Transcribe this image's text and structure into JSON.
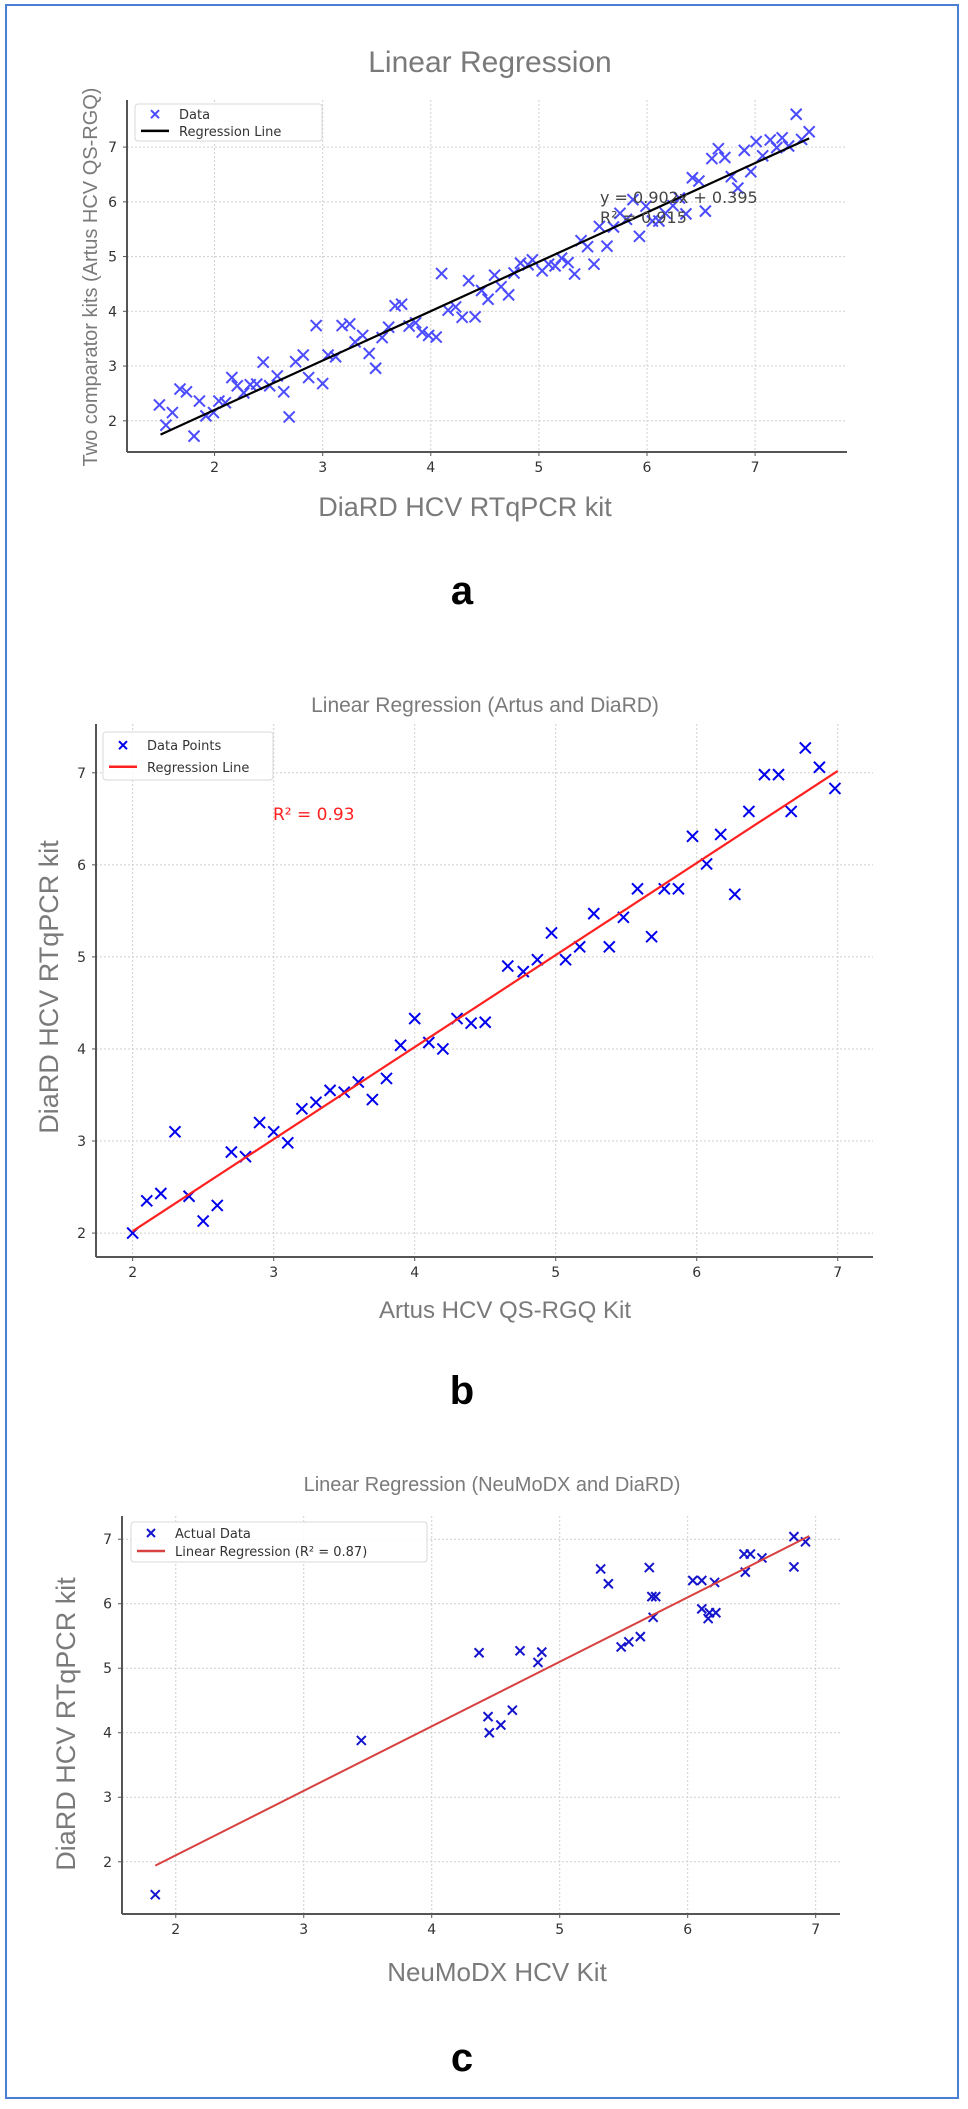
{
  "frame_color": "#4a7fd4",
  "chart_data": [
    {
      "type": "scatter",
      "panel_label": "a",
      "title": "Linear Regression",
      "xlabel": "DiaRD HCV RTqPCR kit",
      "ylabel": "Two comparator kits (Artus HCV QS-RGQ)",
      "xlim": [
        1.19,
        7.85
      ],
      "ylim": [
        1.43,
        7.86
      ],
      "xticks": [
        "2",
        "3",
        "4",
        "5",
        "6",
        "7"
      ],
      "yticks": [
        "2",
        "3",
        "4",
        "5",
        "6",
        "7"
      ],
      "grid": true,
      "legend": {
        "position": "top-left",
        "entries": [
          "Data",
          "Regression Line"
        ]
      },
      "annotation": {
        "equation": "y = 0.902x + 0.395",
        "r2": "R² = 0.915"
      },
      "marker_color": "#4b4bff",
      "line_color": "#000000",
      "regression": {
        "slope": 0.902,
        "intercept": 0.395,
        "x_range": [
          1.5,
          7.5
        ]
      },
      "series": [
        {
          "name": "Data",
          "x": [
            1.49,
            1.55,
            1.61,
            1.68,
            1.74,
            1.81,
            1.86,
            1.92,
            1.99,
            2.04,
            2.1,
            2.16,
            2.21,
            2.27,
            2.33,
            2.39,
            2.45,
            2.51,
            2.58,
            2.64,
            2.69,
            2.75,
            2.82,
            2.87,
            2.94,
            3.0,
            3.05,
            3.12,
            3.18,
            3.25,
            3.3,
            3.37,
            3.43,
            3.49,
            3.55,
            3.61,
            3.67,
            3.73,
            3.8,
            3.86,
            3.92,
            3.98,
            4.05,
            4.1,
            4.16,
            4.23,
            4.29,
            4.35,
            4.41,
            4.47,
            4.53,
            4.59,
            4.65,
            4.72,
            4.77,
            4.83,
            4.9,
            4.94,
            5.03,
            5.09,
            5.15,
            5.21,
            5.27,
            5.33,
            5.39,
            5.45,
            5.51,
            5.56,
            5.63,
            5.69,
            5.75,
            5.81,
            5.87,
            5.93,
            5.99,
            6.05,
            6.11,
            6.17,
            6.24,
            6.3,
            6.36,
            6.42,
            6.48,
            6.54,
            6.6,
            6.66,
            6.72,
            6.78,
            6.84,
            6.9,
            6.96,
            7.01,
            7.07,
            7.14,
            7.2,
            7.25,
            7.31,
            7.38,
            7.43,
            7.5
          ],
          "y": [
            2.29,
            1.92,
            2.15,
            2.58,
            2.53,
            1.72,
            2.36,
            2.09,
            2.15,
            2.36,
            2.33,
            2.79,
            2.64,
            2.51,
            2.66,
            2.67,
            3.07,
            2.64,
            2.82,
            2.53,
            2.07,
            3.08,
            3.2,
            2.79,
            3.74,
            2.68,
            3.2,
            3.17,
            3.74,
            3.77,
            3.44,
            3.56,
            3.23,
            2.96,
            3.52,
            3.71,
            4.1,
            4.13,
            3.73,
            3.79,
            3.62,
            3.56,
            3.53,
            4.69,
            4.02,
            4.08,
            3.89,
            4.56,
            3.9,
            4.38,
            4.22,
            4.66,
            4.45,
            4.3,
            4.7,
            4.88,
            4.85,
            4.94,
            4.74,
            4.86,
            4.83,
            4.97,
            4.89,
            4.68,
            5.29,
            5.18,
            4.86,
            5.55,
            5.19,
            5.54,
            5.79,
            5.68,
            6.04,
            5.37,
            5.92,
            5.65,
            5.65,
            5.79,
            5.93,
            6.07,
            5.78,
            6.44,
            6.38,
            5.83,
            6.79,
            6.97,
            6.81,
            6.46,
            6.25,
            6.94,
            6.55,
            7.1,
            6.84,
            7.13,
            6.99,
            7.17,
            7.02,
            7.6,
            7.14,
            7.28
          ]
        }
      ]
    },
    {
      "type": "scatter",
      "panel_label": "b",
      "title": "Linear Regression (Artus and DiaRD)",
      "xlabel": "Artus HCV QS-RGQ Kit",
      "ylabel": "DiaRD HCV RTqPCR kit",
      "xlim": [
        1.74,
        7.25
      ],
      "ylim": [
        1.74,
        7.53
      ],
      "xticks": [
        "2",
        "3",
        "4",
        "5",
        "6",
        "7"
      ],
      "yticks": [
        "2",
        "3",
        "4",
        "5",
        "6",
        "7"
      ],
      "grid": true,
      "legend": {
        "position": "top-left",
        "entries": [
          "Data Points",
          "Regression Line"
        ]
      },
      "annotation": {
        "r2": "R² = 0.93"
      },
      "marker_color": "#0000ee",
      "line_color": "#ff2020",
      "annotation_color": "#ff2020",
      "regression": {
        "slope": 1.0,
        "intercept": 0.02,
        "x_range": [
          2.0,
          7.0
        ]
      },
      "series": [
        {
          "name": "Data Points",
          "x": [
            2.0,
            2.1,
            2.2,
            2.3,
            2.4,
            2.5,
            2.6,
            2.7,
            2.8,
            2.9,
            3.0,
            3.1,
            3.2,
            3.3,
            3.4,
            3.5,
            3.6,
            3.7,
            3.8,
            3.9,
            4.0,
            4.1,
            4.2,
            4.3,
            4.4,
            4.5,
            4.66,
            4.77,
            4.87,
            4.97,
            5.07,
            5.17,
            5.27,
            5.38,
            5.48,
            5.58,
            5.68,
            5.77,
            5.87,
            5.97,
            6.07,
            6.17,
            6.27,
            6.37,
            6.48,
            6.58,
            6.67,
            6.77,
            6.87,
            6.98
          ],
          "y": [
            2.0,
            2.35,
            2.43,
            3.1,
            2.4,
            2.13,
            2.3,
            2.88,
            2.83,
            3.2,
            3.1,
            2.98,
            3.35,
            3.42,
            3.55,
            3.53,
            3.64,
            3.45,
            3.68,
            4.04,
            4.33,
            4.07,
            4.0,
            4.33,
            4.28,
            4.29,
            4.9,
            4.84,
            4.97,
            5.26,
            4.97,
            5.11,
            5.47,
            5.11,
            5.43,
            5.74,
            5.22,
            5.74,
            5.74,
            6.31,
            6.01,
            6.33,
            5.68,
            6.58,
            6.98,
            6.98,
            6.58,
            7.27,
            7.06,
            6.83
          ]
        }
      ]
    },
    {
      "type": "scatter",
      "panel_label": "c",
      "title": "Linear Regression (NeuMoDX and DiaRD)",
      "xlabel": "NeuMoDX HCV Kit",
      "ylabel": "DiaRD HCV RTqPCR kit",
      "xlim": [
        1.58,
        7.19
      ],
      "ylim": [
        1.19,
        7.36
      ],
      "xticks": [
        "2",
        "3",
        "4",
        "5",
        "6",
        "7"
      ],
      "yticks": [
        "2",
        "3",
        "4",
        "5",
        "6",
        "7"
      ],
      "grid": true,
      "legend": {
        "position": "top-left",
        "entries": [
          "Actual Data",
          "Linear Regression (R² = 0.87)"
        ]
      },
      "marker_color": "#1414cc",
      "line_color": "#d94040",
      "regression": {
        "slope": 1.0,
        "intercept": 0.1,
        "x_range": [
          1.84,
          6.95
        ]
      },
      "series": [
        {
          "name": "Actual Data",
          "x": [
            1.84,
            3.45,
            4.37,
            4.44,
            4.45,
            4.54,
            4.63,
            4.69,
            4.83,
            4.86,
            5.32,
            5.38,
            5.48,
            5.54,
            5.63,
            5.7,
            5.72,
            5.75,
            5.73,
            6.04,
            6.11,
            6.21,
            6.11,
            6.17,
            6.16,
            6.22,
            6.44,
            6.49,
            6.45,
            6.58,
            6.83,
            6.83,
            6.92
          ],
          "y": [
            1.49,
            3.88,
            5.24,
            4.25,
            4.0,
            4.12,
            4.35,
            5.27,
            5.09,
            5.25,
            6.54,
            6.31,
            5.33,
            5.41,
            5.49,
            6.56,
            6.11,
            6.11,
            5.79,
            6.36,
            6.36,
            6.33,
            5.92,
            5.86,
            5.77,
            5.86,
            6.77,
            6.77,
            6.49,
            6.71,
            7.04,
            6.57,
            6.96
          ]
        }
      ]
    }
  ]
}
